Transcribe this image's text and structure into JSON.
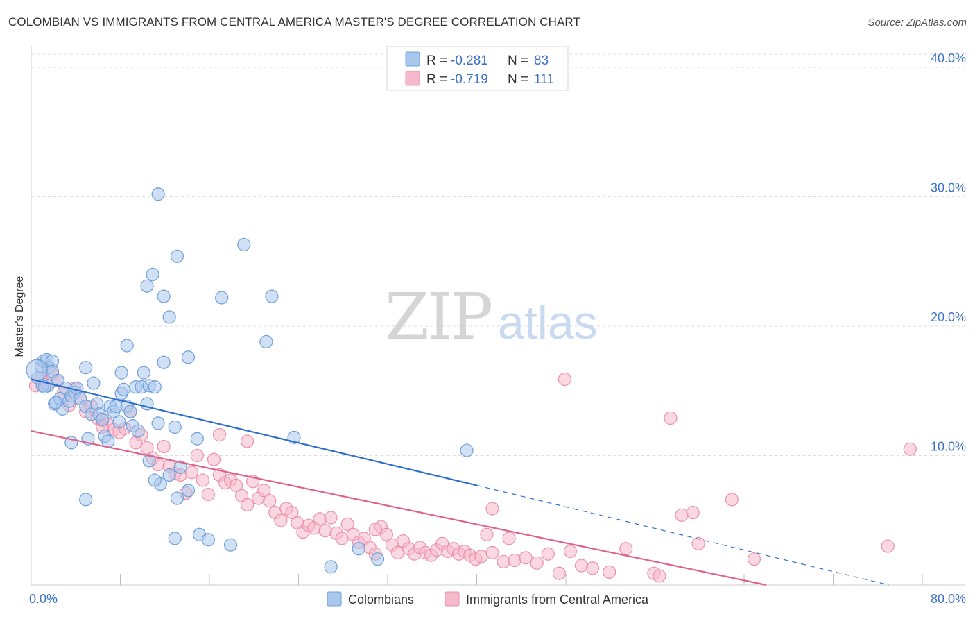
{
  "title": "COLOMBIAN VS IMMIGRANTS FROM CENTRAL AMERICA MASTER'S DEGREE CORRELATION CHART",
  "source": "Source: ZipAtlas.com",
  "watermark": {
    "zip": "ZIP",
    "atlas": "atlas"
  },
  "colors": {
    "blue_fill": "#a9c6ec",
    "blue_stroke": "#6f9fd8",
    "blue_line": "#2e6fcb",
    "pink_fill": "#f6b8cb",
    "pink_stroke": "#ec8fab",
    "pink_line": "#e0628c",
    "grid": "#dcdcdc",
    "axis_text": "#3b72c4"
  },
  "legend": {
    "r_label": "R =",
    "n_label": "N =",
    "entries": [
      {
        "r": "-0.281",
        "n": "83"
      },
      {
        "r": "-0.719",
        "n": "111"
      }
    ]
  },
  "chart_data": {
    "type": "scatter",
    "title": "COLOMBIAN VS IMMIGRANTS FROM CENTRAL AMERICA MASTER'S DEGREE CORRELATION CHART",
    "xlabel": "",
    "ylabel": "Master's Degree",
    "xlim": [
      0,
      80
    ],
    "ylim": [
      0,
      41
    ],
    "x_tick_labels": [
      "0.0%",
      "80.0%"
    ],
    "y_ticks": [
      10,
      20,
      30,
      40
    ],
    "y_tick_labels": [
      "10.0%",
      "20.0%",
      "30.0%",
      "40.0%"
    ],
    "grid": true,
    "legend_position": "bottom",
    "series": [
      {
        "name": "Colombians",
        "r": -0.281,
        "n": 83,
        "trend": {
          "x0": 0,
          "y0": 15.9,
          "x1": 40,
          "y1": 7.7,
          "dash_to_x": 77,
          "dash_to_y": 0.0
        },
        "points": [
          [
            0.6,
            16.0
          ],
          [
            0.9,
            16.9
          ],
          [
            1.1,
            17.3
          ],
          [
            1.4,
            17.4
          ],
          [
            1.6,
            16.8
          ],
          [
            1.9,
            17.3
          ],
          [
            1.5,
            15.4
          ],
          [
            1.9,
            16.5
          ],
          [
            2.1,
            14.0
          ],
          [
            2.4,
            15.8
          ],
          [
            2.6,
            14.4
          ],
          [
            2.8,
            13.6
          ],
          [
            3.1,
            15.2
          ],
          [
            3.4,
            14.2
          ],
          [
            3.6,
            14.6
          ],
          [
            3.9,
            14.9
          ],
          [
            4.1,
            15.2
          ],
          [
            4.4,
            14.4
          ],
          [
            4.9,
            13.8
          ],
          [
            5.1,
            11.3
          ],
          [
            5.4,
            13.2
          ],
          [
            5.6,
            15.6
          ],
          [
            5.9,
            14.0
          ],
          [
            6.1,
            13.2
          ],
          [
            6.4,
            12.8
          ],
          [
            6.6,
            11.5
          ],
          [
            6.9,
            11.1
          ],
          [
            7.1,
            13.8
          ],
          [
            7.4,
            13.4
          ],
          [
            7.6,
            13.8
          ],
          [
            7.9,
            12.6
          ],
          [
            8.1,
            14.8
          ],
          [
            8.3,
            15.1
          ],
          [
            8.6,
            13.8
          ],
          [
            8.9,
            13.4
          ],
          [
            9.1,
            12.3
          ],
          [
            9.4,
            15.3
          ],
          [
            9.6,
            11.9
          ],
          [
            9.9,
            15.3
          ],
          [
            10.1,
            16.4
          ],
          [
            10.4,
            14.0
          ],
          [
            10.6,
            15.4
          ],
          [
            11.1,
            15.3
          ],
          [
            11.4,
            12.5
          ],
          [
            11.9,
            17.2
          ],
          [
            12.4,
            8.5
          ],
          [
            12.9,
            12.2
          ],
          [
            13.4,
            9.1
          ],
          [
            14.1,
            7.3
          ],
          [
            14.9,
            11.3
          ],
          [
            8.6,
            18.5
          ],
          [
            8.1,
            16.4
          ],
          [
            4.9,
            16.8
          ],
          [
            10.4,
            23.1
          ],
          [
            10.9,
            24.0
          ],
          [
            11.4,
            30.2
          ],
          [
            11.9,
            22.3
          ],
          [
            12.4,
            20.7
          ],
          [
            13.1,
            25.4
          ],
          [
            14.1,
            17.6
          ],
          [
            17.1,
            22.2
          ],
          [
            19.1,
            26.3
          ],
          [
            21.1,
            18.8
          ],
          [
            21.6,
            22.3
          ],
          [
            23.6,
            11.4
          ],
          [
            11.6,
            7.8
          ],
          [
            10.6,
            9.6
          ],
          [
            11.1,
            8.1
          ],
          [
            13.1,
            6.7
          ],
          [
            12.9,
            3.6
          ],
          [
            15.1,
            3.9
          ],
          [
            15.9,
            3.5
          ],
          [
            17.9,
            3.1
          ],
          [
            29.4,
            2.8
          ],
          [
            31.1,
            2.0
          ],
          [
            26.9,
            1.4
          ],
          [
            4.9,
            6.6
          ],
          [
            3.6,
            11.0
          ],
          [
            2.2,
            14.1
          ],
          [
            1.0,
            15.4
          ],
          [
            39.1,
            10.4
          ],
          [
            0.5,
            16.6
          ],
          [
            1.2,
            15.3
          ]
        ],
        "radius": [
          9,
          9,
          9,
          9,
          9,
          9,
          9,
          9,
          9,
          9,
          9,
          9,
          9,
          9,
          9,
          9,
          9,
          9,
          9,
          9,
          9,
          9,
          9,
          9,
          9,
          9,
          9,
          9,
          9,
          9,
          9,
          9,
          9,
          9,
          9,
          9,
          9,
          9,
          9,
          9,
          9,
          9,
          9,
          9,
          9,
          9,
          9,
          9,
          9,
          9,
          9,
          9,
          9,
          9,
          9,
          9,
          9,
          9,
          9,
          9,
          9,
          9,
          9,
          9,
          9,
          9,
          9,
          9,
          9,
          9,
          9,
          9,
          9,
          9,
          9,
          9,
          9,
          9,
          9,
          9,
          9,
          15,
          9
        ]
      },
      {
        "name": "Immigrants from Central America",
        "r": -0.719,
        "n": 111,
        "trend": {
          "x0": 0,
          "y0": 11.9,
          "x1": 66,
          "y1": 0.0
        },
        "points": [
          [
            0.4,
            15.4
          ],
          [
            0.9,
            16.0
          ],
          [
            1.4,
            15.5
          ],
          [
            1.9,
            16.3
          ],
          [
            2.4,
            15.8
          ],
          [
            2.9,
            14.9
          ],
          [
            3.4,
            13.9
          ],
          [
            3.9,
            15.2
          ],
          [
            4.4,
            14.4
          ],
          [
            4.9,
            13.4
          ],
          [
            5.4,
            13.8
          ],
          [
            5.9,
            12.9
          ],
          [
            6.4,
            12.7
          ],
          [
            6.9,
            12.4
          ],
          [
            7.4,
            12.0
          ],
          [
            7.9,
            11.8
          ],
          [
            8.4,
            12.1
          ],
          [
            8.9,
            13.4
          ],
          [
            9.4,
            11.0
          ],
          [
            9.9,
            11.6
          ],
          [
            10.4,
            10.6
          ],
          [
            10.9,
            9.8
          ],
          [
            11.4,
            9.3
          ],
          [
            11.9,
            10.7
          ],
          [
            12.4,
            9.2
          ],
          [
            12.9,
            8.6
          ],
          [
            13.4,
            8.5
          ],
          [
            13.9,
            7.1
          ],
          [
            14.4,
            8.7
          ],
          [
            14.9,
            10.0
          ],
          [
            15.4,
            8.1
          ],
          [
            15.9,
            7.0
          ],
          [
            16.4,
            9.7
          ],
          [
            16.9,
            8.5
          ],
          [
            17.4,
            7.9
          ],
          [
            17.9,
            8.1
          ],
          [
            18.4,
            7.7
          ],
          [
            18.9,
            6.9
          ],
          [
            19.4,
            6.2
          ],
          [
            19.9,
            8.0
          ],
          [
            20.4,
            6.7
          ],
          [
            20.9,
            7.3
          ],
          [
            21.4,
            6.5
          ],
          [
            21.9,
            5.6
          ],
          [
            22.4,
            5.0
          ],
          [
            22.9,
            5.9
          ],
          [
            23.4,
            5.6
          ],
          [
            23.9,
            4.8
          ],
          [
            24.4,
            4.1
          ],
          [
            24.9,
            4.6
          ],
          [
            25.4,
            4.4
          ],
          [
            25.9,
            5.1
          ],
          [
            26.4,
            4.2
          ],
          [
            26.9,
            5.2
          ],
          [
            27.4,
            4.0
          ],
          [
            27.9,
            3.6
          ],
          [
            28.4,
            4.7
          ],
          [
            28.9,
            3.9
          ],
          [
            29.4,
            3.3
          ],
          [
            29.9,
            3.6
          ],
          [
            30.4,
            2.9
          ],
          [
            30.9,
            2.4
          ],
          [
            31.4,
            4.5
          ],
          [
            31.9,
            3.9
          ],
          [
            32.4,
            3.1
          ],
          [
            32.9,
            2.5
          ],
          [
            33.4,
            3.4
          ],
          [
            33.9,
            2.8
          ],
          [
            34.4,
            2.4
          ],
          [
            34.9,
            2.9
          ],
          [
            35.4,
            2.5
          ],
          [
            35.9,
            2.3
          ],
          [
            36.4,
            2.7
          ],
          [
            36.9,
            3.2
          ],
          [
            37.4,
            2.6
          ],
          [
            37.9,
            2.8
          ],
          [
            38.4,
            2.4
          ],
          [
            38.9,
            2.6
          ],
          [
            39.4,
            2.3
          ],
          [
            39.9,
            2.0
          ],
          [
            40.4,
            2.2
          ],
          [
            40.9,
            3.9
          ],
          [
            41.4,
            2.5
          ],
          [
            42.4,
            1.8
          ],
          [
            42.9,
            3.6
          ],
          [
            43.4,
            1.9
          ],
          [
            44.4,
            2.1
          ],
          [
            45.4,
            1.7
          ],
          [
            46.4,
            2.4
          ],
          [
            47.4,
            0.9
          ],
          [
            48.4,
            2.6
          ],
          [
            49.4,
            1.5
          ],
          [
            50.4,
            1.3
          ],
          [
            51.9,
            1.0
          ],
          [
            53.4,
            2.8
          ],
          [
            55.9,
            0.9
          ],
          [
            56.4,
            0.7
          ],
          [
            58.4,
            5.4
          ],
          [
            59.4,
            5.6
          ],
          [
            59.9,
            3.2
          ],
          [
            62.9,
            6.6
          ],
          [
            64.9,
            2.0
          ],
          [
            76.9,
            3.0
          ],
          [
            78.9,
            10.5
          ],
          [
            47.9,
            15.9
          ],
          [
            57.4,
            12.9
          ],
          [
            41.4,
            5.9
          ],
          [
            30.9,
            4.3
          ],
          [
            19.4,
            11.1
          ],
          [
            16.9,
            11.6
          ],
          [
            6.4,
            12.2
          ]
        ]
      }
    ]
  },
  "bottom_legend": [
    "Colombians",
    "Immigrants from Central America"
  ]
}
